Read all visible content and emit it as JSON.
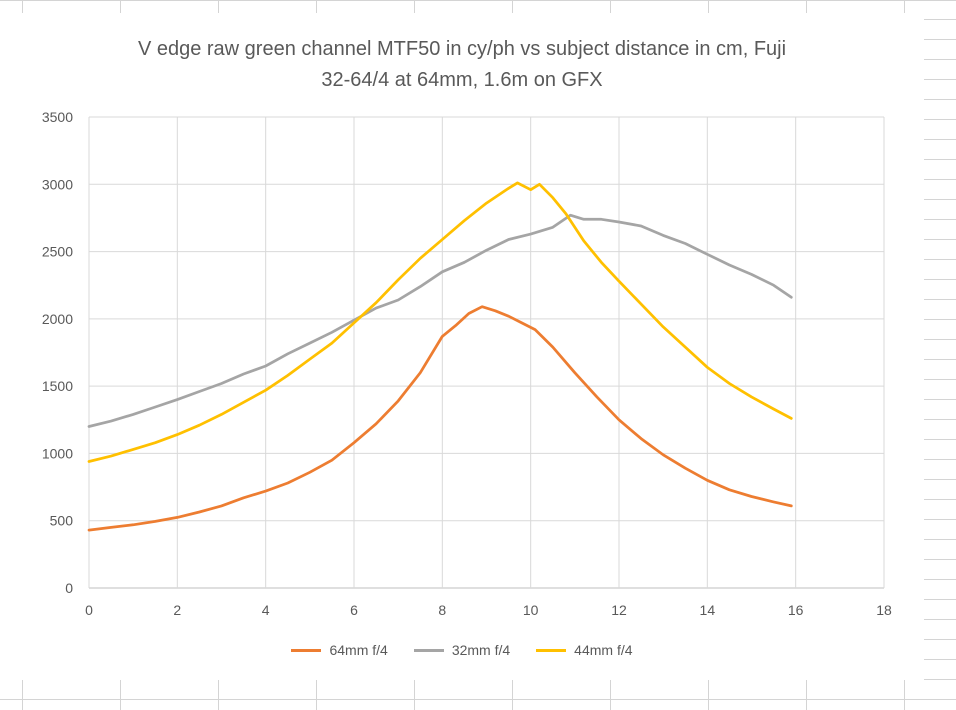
{
  "chart_data": {
    "type": "line",
    "title": "V edge raw green channel MTF50 in cy/ph vs subject distance in cm, Fuji",
    "title_line2": "32-64/4 at 64mm, 1.6m on GFX",
    "xlabel": "",
    "ylabel": "",
    "xlim": [
      0,
      18
    ],
    "ylim": [
      0,
      3500
    ],
    "x_ticks": [
      0,
      2,
      4,
      6,
      8,
      10,
      12,
      14,
      16,
      18
    ],
    "y_ticks": [
      0,
      500,
      1000,
      1500,
      2000,
      2500,
      3000,
      3500
    ],
    "grid": true,
    "legend_position": "bottom",
    "series": [
      {
        "name": "64mm f/4",
        "color": "#ED7D31",
        "points": [
          [
            0,
            430
          ],
          [
            0.5,
            450
          ],
          [
            1,
            470
          ],
          [
            1.5,
            495
          ],
          [
            2,
            525
          ],
          [
            2.5,
            565
          ],
          [
            3,
            610
          ],
          [
            3.5,
            670
          ],
          [
            4,
            720
          ],
          [
            4.5,
            780
          ],
          [
            5,
            860
          ],
          [
            5.5,
            950
          ],
          [
            6,
            1080
          ],
          [
            6.5,
            1220
          ],
          [
            7,
            1390
          ],
          [
            7.5,
            1600
          ],
          [
            8,
            1870
          ],
          [
            8.3,
            1950
          ],
          [
            8.6,
            2040
          ],
          [
            8.9,
            2090
          ],
          [
            9.2,
            2060
          ],
          [
            9.5,
            2020
          ],
          [
            9.8,
            1970
          ],
          [
            10.1,
            1920
          ],
          [
            10.5,
            1790
          ],
          [
            11,
            1600
          ],
          [
            11.5,
            1420
          ],
          [
            12,
            1250
          ],
          [
            12.5,
            1110
          ],
          [
            13,
            990
          ],
          [
            13.5,
            890
          ],
          [
            14,
            800
          ],
          [
            14.5,
            730
          ],
          [
            15,
            680
          ],
          [
            15.5,
            640
          ],
          [
            15.9,
            610
          ]
        ]
      },
      {
        "name": "32mm f/4",
        "color": "#A5A5A5",
        "points": [
          [
            0,
            1200
          ],
          [
            0.5,
            1240
          ],
          [
            1,
            1290
          ],
          [
            1.5,
            1345
          ],
          [
            2,
            1400
          ],
          [
            2.5,
            1460
          ],
          [
            3,
            1520
          ],
          [
            3.5,
            1590
          ],
          [
            4,
            1650
          ],
          [
            4.5,
            1740
          ],
          [
            5,
            1820
          ],
          [
            5.5,
            1900
          ],
          [
            6,
            1990
          ],
          [
            6.5,
            2080
          ],
          [
            7,
            2140
          ],
          [
            7.5,
            2240
          ],
          [
            8,
            2350
          ],
          [
            8.5,
            2420
          ],
          [
            9,
            2510
          ],
          [
            9.5,
            2590
          ],
          [
            10,
            2630
          ],
          [
            10.5,
            2680
          ],
          [
            10.9,
            2770
          ],
          [
            11.2,
            2740
          ],
          [
            11.6,
            2740
          ],
          [
            12,
            2720
          ],
          [
            12.5,
            2690
          ],
          [
            13,
            2620
          ],
          [
            13.5,
            2560
          ],
          [
            14,
            2480
          ],
          [
            14.5,
            2400
          ],
          [
            15,
            2330
          ],
          [
            15.5,
            2250
          ],
          [
            15.9,
            2160
          ]
        ]
      },
      {
        "name": "44mm f/4",
        "color": "#FFC000",
        "points": [
          [
            0,
            940
          ],
          [
            0.5,
            980
          ],
          [
            1,
            1030
          ],
          [
            1.5,
            1080
          ],
          [
            2,
            1140
          ],
          [
            2.5,
            1210
          ],
          [
            3,
            1290
          ],
          [
            3.5,
            1380
          ],
          [
            4,
            1470
          ],
          [
            4.5,
            1580
          ],
          [
            5,
            1700
          ],
          [
            5.5,
            1820
          ],
          [
            6,
            1970
          ],
          [
            6.5,
            2120
          ],
          [
            7,
            2290
          ],
          [
            7.5,
            2450
          ],
          [
            8,
            2590
          ],
          [
            8.5,
            2730
          ],
          [
            9,
            2860
          ],
          [
            9.5,
            2970
          ],
          [
            9.7,
            3010
          ],
          [
            10,
            2960
          ],
          [
            10.2,
            3000
          ],
          [
            10.5,
            2900
          ],
          [
            10.8,
            2780
          ],
          [
            11.2,
            2580
          ],
          [
            11.6,
            2420
          ],
          [
            12,
            2280
          ],
          [
            12.5,
            2110
          ],
          [
            13,
            1940
          ],
          [
            13.5,
            1790
          ],
          [
            14,
            1640
          ],
          [
            14.5,
            1520
          ],
          [
            15,
            1420
          ],
          [
            15.5,
            1330
          ],
          [
            15.9,
            1260
          ]
        ]
      }
    ]
  }
}
